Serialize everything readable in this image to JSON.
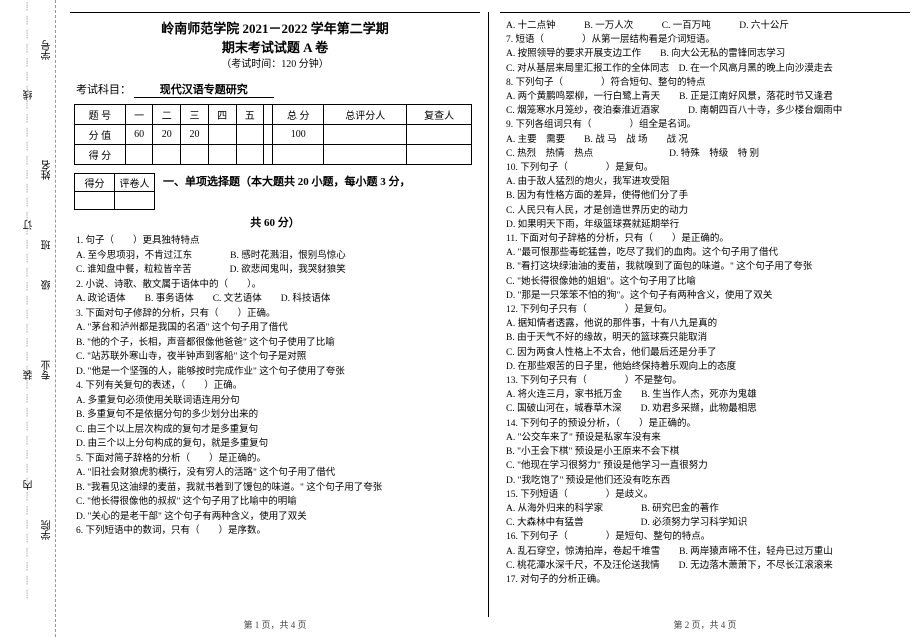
{
  "binding": {
    "labels": [
      "学号",
      "姓名",
      "班",
      "级",
      "专业",
      "学院"
    ],
    "marks": [
      "线",
      "订",
      "装",
      "内"
    ]
  },
  "header": {
    "title": "岭南师范学院 2021－2022 学年第二学期",
    "subtitle": "期末考试试题 A 卷",
    "time": "（考试时间：120 分钟）",
    "subject_label": "考试科目：",
    "subject_value": "现代汉语专题研究"
  },
  "score_table": {
    "row1": [
      "题 号",
      "一",
      "二",
      "三",
      "四",
      "五",
      "",
      "总 分",
      "总评分人",
      "复查人"
    ],
    "row2": [
      "分 值",
      "60",
      "20",
      "20",
      "",
      "",
      "",
      "100",
      "",
      ""
    ],
    "row3": [
      "得 分",
      "",
      "",
      "",
      "",
      "",
      "",
      "",
      "",
      ""
    ]
  },
  "mini_table": {
    "c1": "得分",
    "c2": "评卷人"
  },
  "section1_title": "一、单项选择题（本大题共 20 小题，每小题 3 分，",
  "section1_title2": "共 60 分）",
  "left_lines": [
    "1. 句子（　　）更具独特特点",
    "A. 至今思项羽，不肯过江东　　　　B. 感时花溅泪，恨别鸟惊心",
    "C. 谁知盘中餐，粒粒皆辛苦　　　　D. 欲悲闻鬼叫，我哭豺狼笑",
    "2. 小说、诗歌、散文属于语体中的（　　）。",
    "A. 政论语体　　B. 事务语体　　C. 文艺语体　　D. 科技语体",
    "3. 下面对句子修辞的分析，只有（　　）正确。",
    "A. \"茅台和泸州都是我国的名酒\" 这个句子用了借代",
    "B. \"他的个子，长相，声音都很像他爸爸\" 这个句子使用了比喻",
    "C. \"站苏联外寒山寺，夜半钟声到客船\" 这个句子是对照",
    "D. \"他是一个坚强的人，能够按时完成作业\" 这个句子使用了夸张",
    "4. 下列有关复句的表述，（　　）正确。",
    "A. 多重复句必须使用关联词语连用分句",
    "B. 多重复句不是依据分句的多少划分出来的",
    "C. 由三个以上层次构成的复句才是多重复句",
    "D. 由三个以上分句构成的复句，就是多重复句",
    "5. 下面对简子辞格的分析（　　）是正确的。",
    "A. \"旧社会财狼虎豹横行，没有穷人的活路\" 这个句子用了借代",
    "B. \"我看见这油绿的麦苗，我就书着到了馒包的味道。\" 这个句子用了夸张",
    "C. \"他长得很像他的叔叔\" 这个句子用了比喻中的明喻",
    "D. \"关心的是老干部\" 这个句子有两种含义，使用了双关",
    "6. 下列短语中的数词，只有（　　）是序数。"
  ],
  "right_lines": [
    "A. 十二点钟　　　B. 一万人次　　　C. 一百万吨　　　D. 六十公斤",
    "7. 短语（　　　　）从第一层结构看是介词短语。",
    "A. 按照领导的要求开展支边工作　　B. 向大公无私的雷锋同志学习",
    "C. 对从基层来局里汇报工作的全体同志　D. 在一个风高月黑的晚上向沙漠走去",
    "8. 下列句子（　　　　）符合短句、整句的特点",
    "A. 两个黄鹏鸣翠柳，一行白鹭上青天　　B. 正是江南好风景，落花时节又逢君",
    "C. 烟笼寒水月笼纱，夜泊秦淮近酒家　　　D. 南朝四百八十寺，多少楼台烟雨中",
    "9. 下列各组词只有（　　　　）组全是名词。",
    "A. 主要　需要　　B. 战 马　战 场　　战 况",
    "C. 热烈　热情　热点　　　　　　　　D. 特殊　特级　特 别",
    "10. 下列句子（　　　　）是复句。",
    "A. 由于敌人猛烈的炮火，我军进攻受阻",
    "B. 因为有性格方面的差异，使得他们分了手",
    "C. 人民只有人民，才是创造世界历史的动力",
    "D. 如果明天下雨，年级篮球赛就延期举行",
    "11. 下面对句子辞格的分析，只有（　　）是正确的。",
    "A. \"最可恨那些毒蛇猛兽，吃尽了我们的血肉。这个句子用了借代",
    "B. \"看打这块绿油油的麦苗，我就嗅到了面包的味道。\" 这个句子用了夸张",
    "C. \"她长得很像她的姐姐\"。这个句子用了比喻",
    "D. \"那是一只笨笨不怕的狗\"。这个句子有两种含义，使用了双关",
    "12. 下列句子只有（　　　　）是复句。",
    "A. 据知情者透露，他说的那件事，十有八九是真的",
    "B. 由于天气不好的缘故，明天的篮球赛只能取消",
    "C. 因为两食人性格上不太合，他们最后还是分手了",
    "D. 在那些艰苦的日子里，他始终保持着乐观向上的态度",
    "13. 下列句子只有（　　　　）不是整句。",
    "A. 将火连三月，家书抵万金　　B. 生当作人杰，死亦为鬼雄",
    "C. 国破山河在，城春草木深　　D. 劝君多采撷，此物最相思",
    "14. 下列句子的预设分析，（　　）是正确的。",
    "A. \"公交车来了\" 预设是私家车没有来",
    "B. \"小王会下棋\" 预设是小王原来不会下棋",
    "C. \"他现在学习很努力\" 预设是他学习一直很努力",
    "D. \"我吃饱了\" 预设是他们还没有吃东西",
    "15. 下列短语（　　　　）是歧义。",
    "A. 从海外归来的科学家　　　　B. 研究巴金的著作",
    "C. 大森林中有猛兽　　　　　　D. 必须努力学习科学知识",
    "16. 下列句子（　　　　）是短句、整句的特点。",
    "A. 乱石穿空，惊涛拍岸，卷起千堆雪　　B. 两岸猿声啼不住，轻舟已过万重山",
    "C. 桃花潭水深千尺，不及汪伦送我情　　D. 无边落木萧萧下，不尽长江滚滚来",
    "17. 对句子的分析正确。"
  ],
  "footer_left": "第 1 页，共 4 页",
  "footer_right": "第 2 页，共 4 页"
}
